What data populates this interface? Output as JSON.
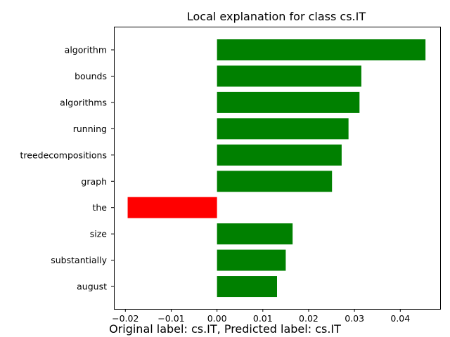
{
  "chart_data": {
    "type": "bar",
    "orientation": "horizontal",
    "title": "Local explanation for class cs.IT",
    "xlabel": "",
    "ylabel": "",
    "categories": [
      "algorithm",
      "bounds",
      "algorithms",
      "running",
      "treedecompositions",
      "graph",
      "the",
      "size",
      "substantially",
      "august"
    ],
    "values": [
      0.0455,
      0.0315,
      0.0311,
      0.0287,
      0.0272,
      0.0251,
      -0.0195,
      0.0165,
      0.015,
      0.0131
    ],
    "xlim": [
      -0.0225,
      0.0487
    ],
    "xticks": [
      -0.02,
      -0.01,
      0.0,
      0.01,
      0.02,
      0.03,
      0.04
    ],
    "xtick_labels": [
      "−0.02",
      "−0.01",
      "0.00",
      "0.01",
      "0.02",
      "0.03",
      "0.04"
    ],
    "colors": {
      "positive": "#008000",
      "negative": "#ff0000"
    },
    "grid": false,
    "legend": "none"
  },
  "caption": "Original label: cs.IT, Predicted label: cs.IT"
}
